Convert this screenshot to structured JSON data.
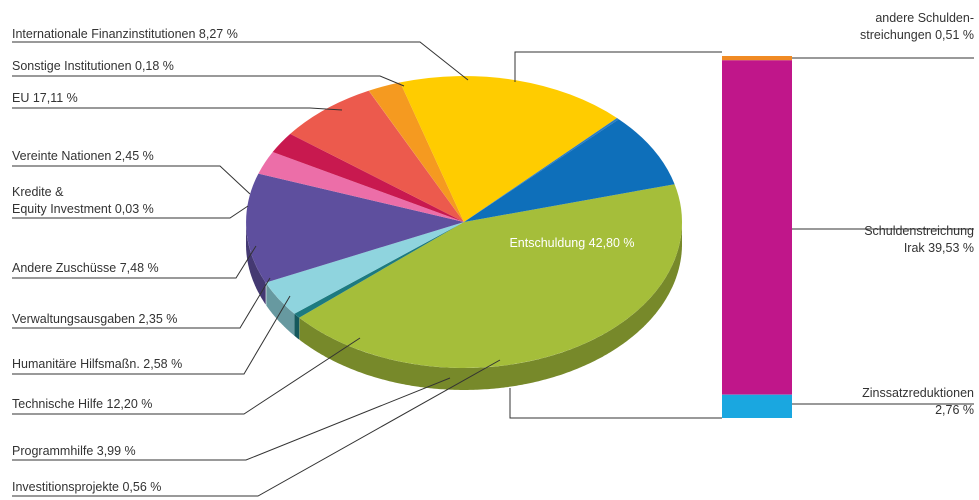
{
  "chart_data": {
    "type": "pie",
    "title": "",
    "slices": [
      {
        "label": "Entschuldung 42,80 %",
        "value": 42.8,
        "color": "#a5be3a"
      },
      {
        "label": "Investitionsprojekte 0,56 %",
        "value": 0.56,
        "color": "#1d7a80"
      },
      {
        "label": "Programmhilfe 3,99 %",
        "value": 3.99,
        "color": "#8fd4de"
      },
      {
        "label": "Technische Hilfe 12,20 %",
        "value": 12.2,
        "color": "#5e4f9e"
      },
      {
        "label": "Humanitäre Hilfsmaßn. 2,58 %",
        "value": 2.58,
        "color": "#ec6ea8"
      },
      {
        "label": "Verwaltungsausgaben 2,35 %",
        "value": 2.35,
        "color": "#c8194f"
      },
      {
        "label": "Andere Zuschüsse 7,48 %",
        "value": 7.48,
        "color": "#ec5a4d"
      },
      {
        "label": "Kredite & Equity Investment 0,03 %",
        "value": 0.03,
        "color": "#f07e2a"
      },
      {
        "label": "Vereinte Nationen 2,45 %",
        "value": 2.45,
        "color": "#f59a20"
      },
      {
        "label": "EU 17,11 %",
        "value": 17.11,
        "color": "#ffcc00"
      },
      {
        "label": "Sonstige Institutionen 0,18 %",
        "value": 0.18,
        "color": "#2a7cc4"
      },
      {
        "label": "Internationale Finanzinstitutionen 8,27 %",
        "value": 8.27,
        "color": "#0e6fba"
      }
    ],
    "breakdown": {
      "of": "Entschuldung 42,80 %",
      "segments": [
        {
          "label": "andere Schulden-\nstreichungen 0,51 %",
          "value": 0.51,
          "color": "#f08a24"
        },
        {
          "label": "Schuldenstreichung\nIrak 39,53 %",
          "value": 39.53,
          "color": "#c0168a"
        },
        {
          "label": "Zinssatzreduktionen\n2,76 %",
          "value": 2.76,
          "color": "#1aa7e0"
        }
      ]
    }
  }
}
